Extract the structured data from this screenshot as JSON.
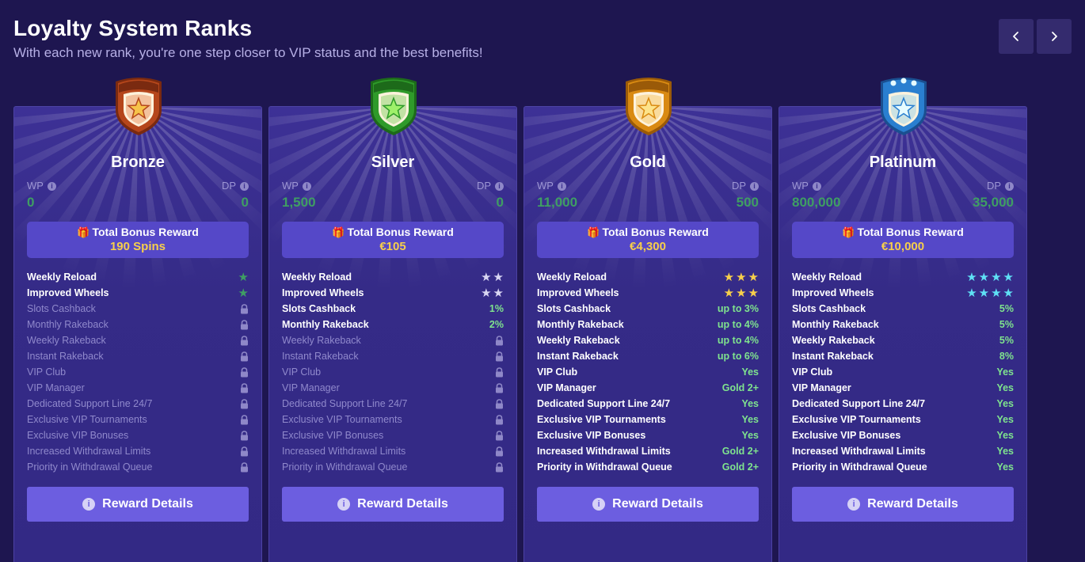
{
  "header": {
    "title": "Loyalty System Ranks",
    "subtitle": "With each new rank, you're one step closer to VIP status and the best benefits!"
  },
  "nav": {
    "prev_icon": "chevron-left-icon",
    "next_icon": "chevron-right-icon"
  },
  "labels": {
    "wp": "WP",
    "dp": "DP",
    "total_bonus": "Total Bonus Reward",
    "reward_details": "Reward Details"
  },
  "colors": {
    "background": "#1e1650",
    "card": "#3a2f8f",
    "button": "#6c5ee0",
    "accent_gold": "#f7cf4b",
    "value_green": "#7fe38e"
  },
  "ranks": [
    {
      "name": "Bronze",
      "wp": "0",
      "dp": "0",
      "bonus": "190 Spins",
      "badge": {
        "outer": "#b5461b",
        "inner": "#e06a2a",
        "star": "#f6c34a",
        "dark": "#7a2a10"
      },
      "benefits": [
        {
          "name": "Weekly Reload",
          "type": "stars",
          "stars": 1,
          "star_color": "#3f9e63"
        },
        {
          "name": "Improved Wheels",
          "type": "stars",
          "stars": 1,
          "star_color": "#3f9e63"
        },
        {
          "name": "Slots Cashback",
          "type": "lock"
        },
        {
          "name": "Monthly Rakeback",
          "type": "lock"
        },
        {
          "name": "Weekly Rakeback",
          "type": "lock"
        },
        {
          "name": "Instant Rakeback",
          "type": "lock"
        },
        {
          "name": "VIP Club",
          "type": "lock"
        },
        {
          "name": "VIP Manager",
          "type": "lock"
        },
        {
          "name": "Dedicated Support Line 24/7",
          "type": "lock"
        },
        {
          "name": "Exclusive VIP Tournaments",
          "type": "lock"
        },
        {
          "name": "Exclusive VIP Bonuses",
          "type": "lock"
        },
        {
          "name": "Increased Withdrawal Limits",
          "type": "lock"
        },
        {
          "name": "Priority in Withdrawal Queue",
          "type": "lock"
        }
      ]
    },
    {
      "name": "Silver",
      "wp": "1,500",
      "dp": "0",
      "bonus": "€105",
      "badge": {
        "outer": "#2f9a2a",
        "inner": "#53c63c",
        "star": "#9ef06a",
        "dark": "#1d6a1a"
      },
      "benefits": [
        {
          "name": "Weekly Reload",
          "type": "stars",
          "stars": 2,
          "star_color": "#d9d6f3"
        },
        {
          "name": "Improved Wheels",
          "type": "stars",
          "stars": 2,
          "star_color": "#d9d6f3"
        },
        {
          "name": "Slots Cashback",
          "type": "value",
          "value": "1%"
        },
        {
          "name": "Monthly Rakeback",
          "type": "value",
          "value": "2%"
        },
        {
          "name": "Weekly Rakeback",
          "type": "lock"
        },
        {
          "name": "Instant Rakeback",
          "type": "lock"
        },
        {
          "name": "VIP Club",
          "type": "lock"
        },
        {
          "name": "VIP Manager",
          "type": "lock"
        },
        {
          "name": "Dedicated Support Line 24/7",
          "type": "lock"
        },
        {
          "name": "Exclusive VIP Tournaments",
          "type": "lock"
        },
        {
          "name": "Exclusive VIP Bonuses",
          "type": "lock"
        },
        {
          "name": "Increased Withdrawal Limits",
          "type": "lock"
        },
        {
          "name": "Priority in Withdrawal Queue",
          "type": "lock"
        }
      ]
    },
    {
      "name": "Gold",
      "wp": "11,000",
      "dp": "500",
      "bonus": "€4,300",
      "badge": {
        "outer": "#d98a12",
        "inner": "#f2b12a",
        "star": "#fde38a",
        "dark": "#9a5a08"
      },
      "benefits": [
        {
          "name": "Weekly Reload",
          "type": "stars",
          "stars": 3,
          "star_color": "#f7cf4b"
        },
        {
          "name": "Improved Wheels",
          "type": "stars",
          "stars": 3,
          "star_color": "#f7cf4b"
        },
        {
          "name": "Slots Cashback",
          "type": "value",
          "value": "up to 3%"
        },
        {
          "name": "Monthly Rakeback",
          "type": "value",
          "value": "up to 4%"
        },
        {
          "name": "Weekly Rakeback",
          "type": "value",
          "value": "up to 4%"
        },
        {
          "name": "Instant Rakeback",
          "type": "value",
          "value": "up to 6%"
        },
        {
          "name": "VIP Club",
          "type": "value",
          "value": "Yes"
        },
        {
          "name": "VIP Manager",
          "type": "value",
          "value": "Gold 2+"
        },
        {
          "name": "Dedicated Support Line 24/7",
          "type": "value",
          "value": "Yes"
        },
        {
          "name": "Exclusive VIP Tournaments",
          "type": "value",
          "value": "Yes"
        },
        {
          "name": "Exclusive VIP Bonuses",
          "type": "value",
          "value": "Yes"
        },
        {
          "name": "Increased Withdrawal Limits",
          "type": "value",
          "value": "Gold 2+"
        },
        {
          "name": "Priority in Withdrawal Queue",
          "type": "value",
          "value": "Gold 2+"
        }
      ]
    },
    {
      "name": "Platinum",
      "wp": "800,000",
      "dp": "35,000",
      "bonus": "€10,000",
      "badge": {
        "outer": "#2a7fd0",
        "inner": "#6ec6f2",
        "star": "#e6fbff",
        "dark": "#1a4f90"
      },
      "benefits": [
        {
          "name": "Weekly Reload",
          "type": "stars",
          "stars": 4,
          "star_color": "#5fe0f5"
        },
        {
          "name": "Improved Wheels",
          "type": "stars",
          "stars": 4,
          "star_color": "#5fe0f5"
        },
        {
          "name": "Slots Cashback",
          "type": "value",
          "value": "5%"
        },
        {
          "name": "Monthly Rakeback",
          "type": "value",
          "value": "5%"
        },
        {
          "name": "Weekly Rakeback",
          "type": "value",
          "value": "5%"
        },
        {
          "name": "Instant Rakeback",
          "type": "value",
          "value": "8%"
        },
        {
          "name": "VIP Club",
          "type": "value",
          "value": "Yes"
        },
        {
          "name": "VIP Manager",
          "type": "value",
          "value": "Yes"
        },
        {
          "name": "Dedicated Support Line 24/7",
          "type": "value",
          "value": "Yes"
        },
        {
          "name": "Exclusive VIP Tournaments",
          "type": "value",
          "value": "Yes"
        },
        {
          "name": "Exclusive VIP Bonuses",
          "type": "value",
          "value": "Yes"
        },
        {
          "name": "Increased Withdrawal Limits",
          "type": "value",
          "value": "Yes"
        },
        {
          "name": "Priority in Withdrawal Queue",
          "type": "value",
          "value": "Yes"
        }
      ]
    }
  ]
}
